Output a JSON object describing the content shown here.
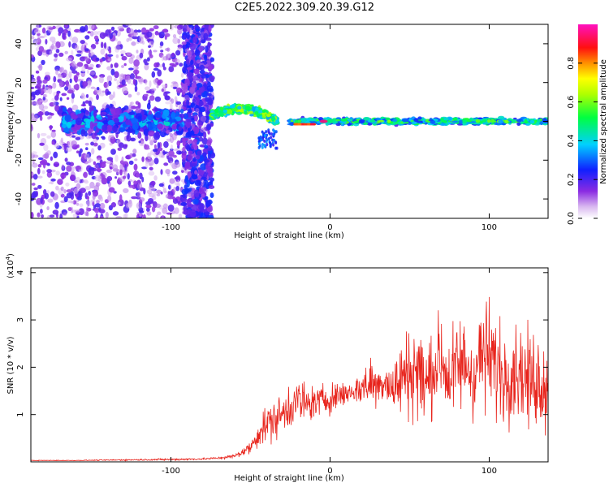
{
  "figure": {
    "title": "C2E5.2022.309.20.39.G12"
  },
  "colors": {
    "trace": "#e8241c",
    "axis": "#000000",
    "background": "#ffffff"
  },
  "chart_data": [
    {
      "type": "heatmap",
      "title": "",
      "xlabel": "Height of straight line (km)",
      "ylabel": "Frequency (Hz)",
      "xlim": [
        -188,
        137
      ],
      "ylim": [
        -50,
        50
      ],
      "xticks": [
        -100,
        0,
        100
      ],
      "yticks": [
        -40,
        -20,
        0,
        20,
        40
      ],
      "colorbar": {
        "label": "Normalized spectral amplitude",
        "range": [
          0,
          1
        ],
        "ticks": [
          0.0,
          0.2,
          0.4,
          0.6,
          0.8
        ],
        "colormap": "rainbow (white-purple-blue-cyan-green-yellow-red-magenta)"
      },
      "features": [
        {
          "region": "broadband noise",
          "x_range": [
            -188,
            -75
          ],
          "freq_range": [
            -50,
            50
          ],
          "amplitude": 0.15
        },
        {
          "region": "low-frequency band",
          "x_range": [
            -168,
            -93
          ],
          "freq_center": 0,
          "amplitude": 0.35
        },
        {
          "region": "rising tone",
          "x_range": [
            -75,
            -33
          ],
          "freq_center": 6,
          "amplitude": 0.55
        },
        {
          "region": "narrow carrier",
          "x_range": [
            -25,
            137
          ],
          "freq_center": 0,
          "amplitude": 0.6
        },
        {
          "region": "strong peak",
          "x": -4,
          "freq": 0,
          "amplitude": 0.95
        }
      ]
    },
    {
      "type": "line",
      "title": "",
      "xlabel": "Height of straight line (km)",
      "ylabel": "SNR (10 * v/v)",
      "ylabel_scale": "(x10",
      "ylabel_scale_exp": "4",
      "ylabel_scale_close": ")",
      "xlim": [
        -188,
        137
      ],
      "ylim": [
        0,
        4.1
      ],
      "xticks": [
        -100,
        0,
        100
      ],
      "yticks": [
        1,
        2,
        3,
        4
      ],
      "series": [
        {
          "x": [
            -188,
            -160,
            -130,
            -100,
            -80,
            -70,
            -60,
            -50,
            -45,
            -40,
            -35,
            -30,
            -25,
            -20,
            -15,
            -10,
            -5,
            0,
            5,
            10,
            15,
            20,
            25,
            30,
            35,
            40,
            45,
            50,
            55,
            60,
            65,
            70,
            75,
            80,
            85,
            90,
            95,
            100,
            105,
            110,
            115,
            120,
            125,
            130,
            137
          ],
          "y": [
            0.03,
            0.03,
            0.04,
            0.05,
            0.06,
            0.08,
            0.12,
            0.3,
            0.6,
            0.8,
            0.9,
            1.0,
            1.2,
            1.3,
            1.2,
            1.25,
            1.3,
            1.35,
            1.4,
            1.45,
            1.5,
            1.55,
            1.7,
            1.6,
            1.75,
            1.5,
            1.8,
            1.9,
            2.0,
            1.6,
            2.0,
            2.2,
            1.7,
            2.0,
            2.1,
            1.8,
            2.3,
            2.2,
            2.0,
            1.8,
            2.0,
            1.9,
            1.7,
            1.8,
            1.5
          ],
          "spread": [
            0.01,
            0.01,
            0.02,
            0.03,
            0.03,
            0.04,
            0.06,
            0.2,
            0.4,
            0.6,
            0.6,
            0.7,
            0.7,
            0.8,
            0.6,
            0.5,
            0.5,
            0.5,
            0.4,
            0.4,
            0.4,
            0.5,
            0.9,
            0.6,
            0.6,
            0.9,
            1.2,
            1.4,
            1.6,
            1.2,
            1.5,
            1.4,
            1.3,
            1.5,
            1.5,
            1.4,
            1.6,
            1.7,
            1.6,
            1.5,
            1.5,
            1.5,
            1.4,
            1.5,
            1.2
          ]
        }
      ]
    }
  ]
}
